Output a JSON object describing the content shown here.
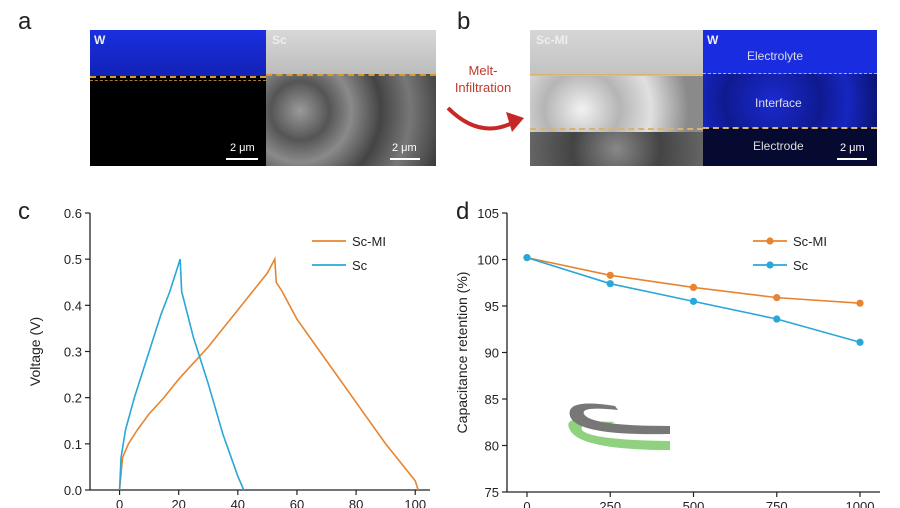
{
  "panels": {
    "a": "a",
    "b": "b",
    "c": "c",
    "d": "d"
  },
  "panel_a": {
    "left_label": "W",
    "right_label": "Sc",
    "scale_left": "2 μm",
    "scale_right": "2 μm"
  },
  "panel_b": {
    "left_label": "Sc-MI",
    "right_label": "W",
    "scale": "2 μm",
    "zones": [
      "Electrolyte",
      "Interface",
      "Electrode"
    ]
  },
  "arrow_text": {
    "line1": "Melt-",
    "line2": "Infiltration"
  },
  "colors": {
    "scmi": "#e8842f",
    "sc": "#29a7d8",
    "blue_img": "#1526c8",
    "arrow": "#c62828"
  },
  "chart_data": [
    {
      "type": "line",
      "ylabel": "Voltage (V)",
      "xlim": [
        -10,
        105
      ],
      "ylim": [
        0,
        0.6
      ],
      "xticks": [
        0,
        20,
        40,
        60,
        80,
        100
      ],
      "yticks": [
        0.0,
        0.1,
        0.2,
        0.3,
        0.4,
        0.5,
        0.6
      ],
      "ytick_labels": [
        "0.0",
        "0.1",
        "0.2",
        "0.3",
        "0.4",
        "0.5",
        "0.6"
      ],
      "legend": "top-right",
      "series": [
        {
          "name": "Sc-MI",
          "x": [
            0,
            1,
            3,
            6,
            10,
            15,
            20,
            25,
            30,
            35,
            40,
            45,
            50,
            52.5,
            53,
            55,
            60,
            70,
            80,
            90,
            100,
            101
          ],
          "y": [
            0,
            0.07,
            0.1,
            0.13,
            0.165,
            0.2,
            0.24,
            0.275,
            0.31,
            0.35,
            0.39,
            0.43,
            0.47,
            0.5,
            0.45,
            0.43,
            0.37,
            0.28,
            0.19,
            0.1,
            0.02,
            0
          ]
        },
        {
          "name": "Sc",
          "x": [
            0,
            0.5,
            2,
            5,
            8,
            11,
            14,
            17,
            19,
            20.5,
            21,
            25,
            30,
            35,
            40,
            42
          ],
          "y": [
            0,
            0.07,
            0.13,
            0.2,
            0.26,
            0.32,
            0.38,
            0.43,
            0.47,
            0.5,
            0.43,
            0.33,
            0.23,
            0.12,
            0.03,
            0
          ]
        }
      ]
    },
    {
      "type": "line",
      "ylabel": "Capacitance retention (%)",
      "xlim": [
        -60,
        1060
      ],
      "ylim": [
        75,
        105
      ],
      "xticks": [
        0,
        250,
        500,
        750,
        1000
      ],
      "yticks": [
        75,
        80,
        85,
        90,
        95,
        100,
        105
      ],
      "legend": "top-right",
      "series": [
        {
          "name": "Sc-MI",
          "x": [
            0,
            250,
            500,
            750,
            1000
          ],
          "y": [
            100.2,
            98.3,
            97.0,
            95.9,
            95.3
          ]
        },
        {
          "name": "Sc",
          "x": [
            0,
            250,
            500,
            750,
            1000
          ],
          "y": [
            100.2,
            97.4,
            95.5,
            93.6,
            91.1
          ]
        }
      ]
    }
  ]
}
